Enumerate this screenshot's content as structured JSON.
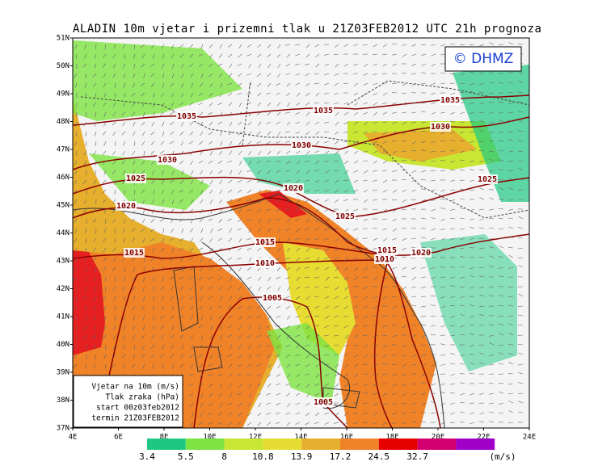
{
  "header": {
    "title": "ALADIN 10m vjetar i prizemni tlak u 21Z03FEB2012 UTC 21h prognoza",
    "logo": "© DHMZ"
  },
  "map": {
    "lat_labels": [
      "51N",
      "50N",
      "49N",
      "48N",
      "47N",
      "46N",
      "45N",
      "44N",
      "43N",
      "42N",
      "41N",
      "40N",
      "39N",
      "38N",
      "37N"
    ],
    "lon_labels": [
      "4E",
      "6E",
      "8E",
      "10E",
      "12E",
      "14E",
      "16E",
      "18E",
      "20E",
      "22E",
      "24E"
    ],
    "isobar_labels": [
      "1035",
      "1035",
      "1035",
      "1030",
      "1030",
      "1030",
      "1025",
      "1025",
      "1025",
      "1020",
      "1020",
      "1020",
      "1015",
      "1015",
      "1015",
      "1010",
      "1010",
      "1005",
      "1005"
    ]
  },
  "legend": {
    "lines": [
      "Vjetar na 10m (m/s)",
      "Tlak zraka (hPa)",
      "start 00z03feb2012",
      "termin 21Z03FEB2012"
    ]
  },
  "colorbar": {
    "labels": [
      "3.4",
      "5.5",
      "8",
      "10.8",
      "13.9",
      "17.2",
      "24.5",
      "32.7"
    ],
    "unit": "(m/s)"
  }
}
